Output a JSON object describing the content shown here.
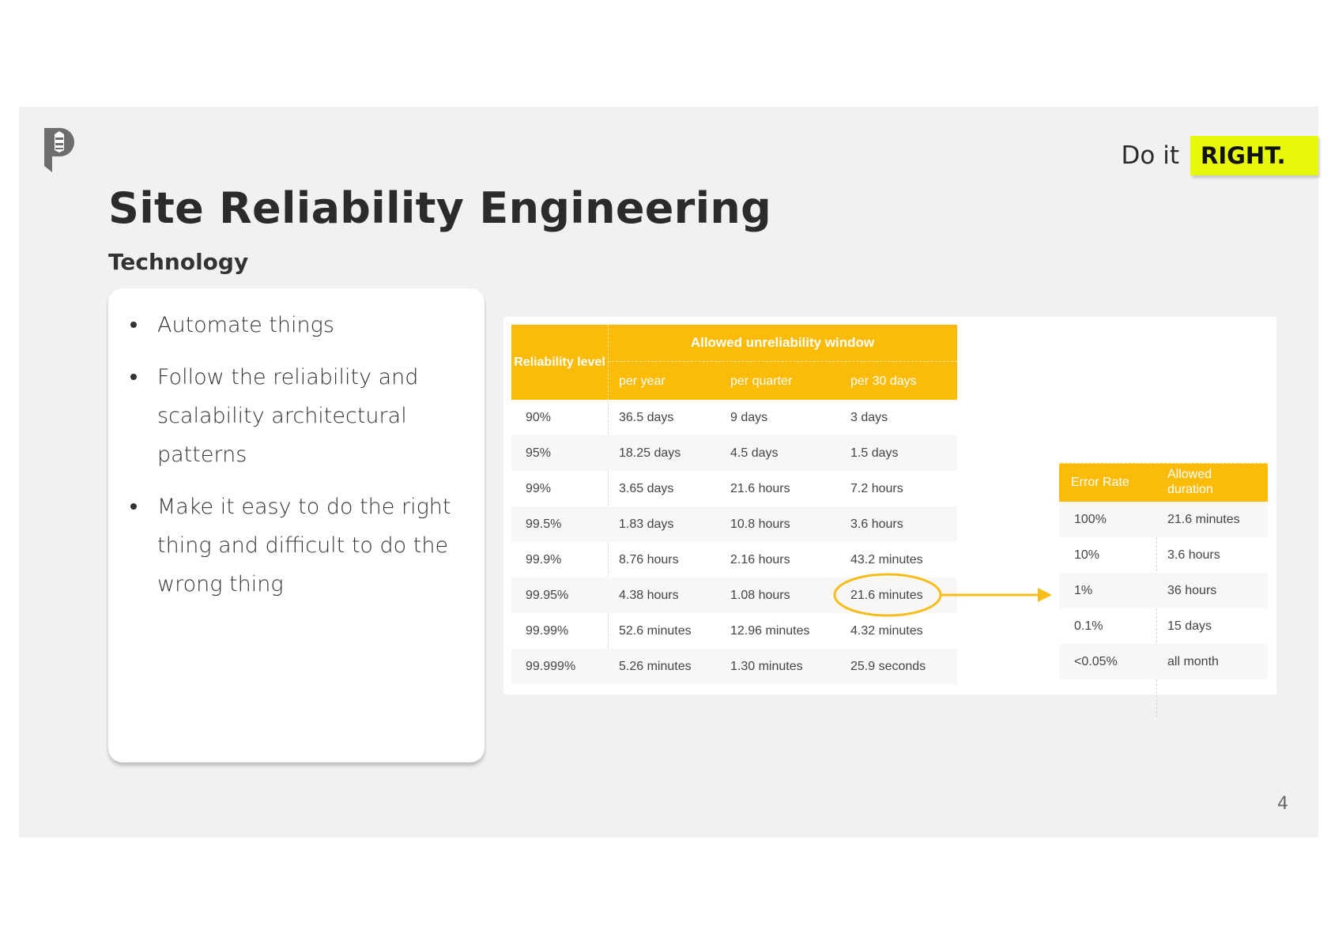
{
  "brand": {
    "tagline_prefix": "Do it",
    "tagline_emphasis": "RIGHT.",
    "accent_color": "#e6f70a",
    "table_header_color": "#fbbc09"
  },
  "slide": {
    "title": "Site Reliability Engineering",
    "subtitle": "Technology",
    "page_number": "4"
  },
  "bullets": [
    "Automate things",
    "Follow the reliability and scalability architectural patterns",
    "Make it easy to do the right thing and difficult to do the wrong thing"
  ],
  "reliability_table": {
    "header_reliability": "Reliability level",
    "header_window": "Allowed unreliability window",
    "subheaders": [
      "per year",
      "per quarter",
      "per 30 days"
    ],
    "rows": [
      [
        "90%",
        "36.5 days",
        "9 days",
        "3 days"
      ],
      [
        "95%",
        "18.25 days",
        "4.5 days",
        "1.5 days"
      ],
      [
        "99%",
        "3.65 days",
        "21.6 hours",
        "7.2 hours"
      ],
      [
        "99.5%",
        "1.83 days",
        "10.8 hours",
        "3.6 hours"
      ],
      [
        "99.9%",
        "8.76 hours",
        "2.16 hours",
        "43.2 minutes"
      ],
      [
        "99.95%",
        "4.38 hours",
        "1.08 hours",
        "21.6 minutes"
      ],
      [
        "99.99%",
        "52.6 minutes",
        "12.96 minutes",
        "4.32 minutes"
      ],
      [
        "99.999%",
        "5.26 minutes",
        "1.30 minutes",
        "25.9 seconds"
      ]
    ]
  },
  "error_table": {
    "header_rate": "Error Rate",
    "header_duration": "Allowed duration",
    "rows": [
      [
        "100%",
        "21.6 minutes"
      ],
      [
        "10%",
        "3.6 hours"
      ],
      [
        "1%",
        "36 hours"
      ],
      [
        "0.1%",
        "15 days"
      ],
      [
        "<0.05%",
        "all month"
      ]
    ]
  },
  "annotation": {
    "highlighted_value": "21.6 minutes",
    "highlight_color": "#f6bd1a",
    "arrow_target": "error_table"
  }
}
